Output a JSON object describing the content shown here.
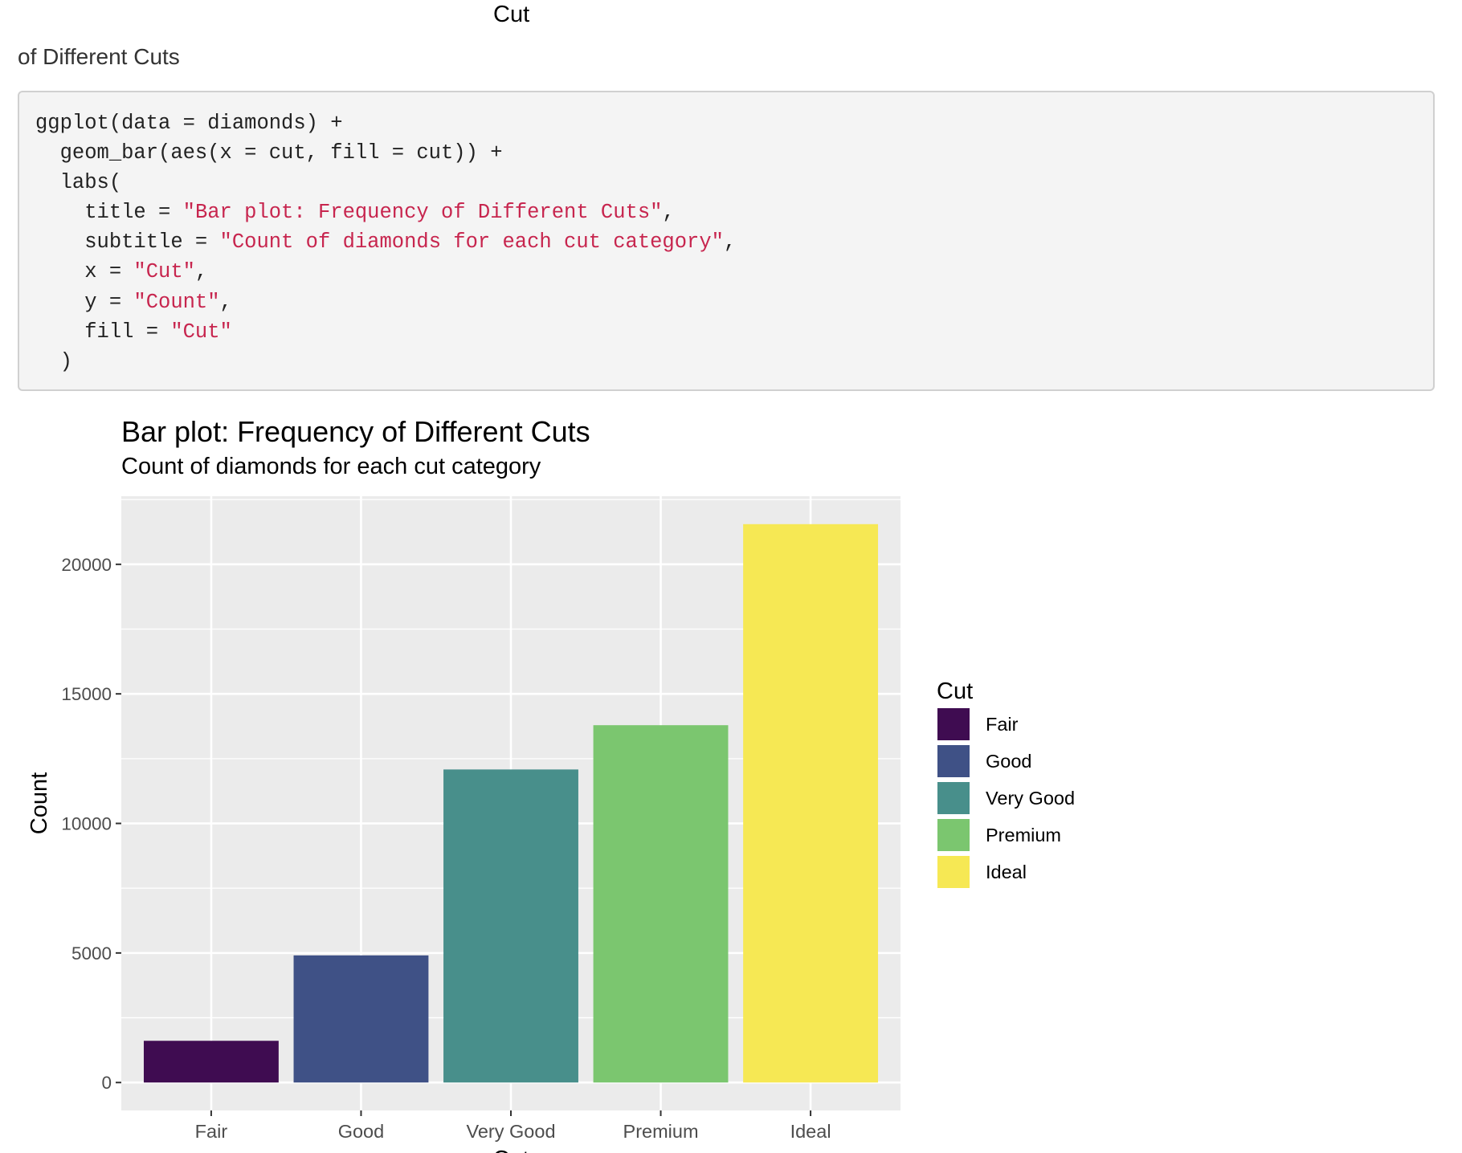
{
  "previous_output": {
    "axis_label": "Cut",
    "caption": "of Different Cuts"
  },
  "code": {
    "lines": [
      [
        {
          "t": "ggplot(data = diamonds) +",
          "k": "plain"
        }
      ],
      [
        {
          "t": "  geom_bar(aes(x = cut, fill = cut)) +",
          "k": "plain"
        }
      ],
      [
        {
          "t": "  labs(",
          "k": "plain"
        }
      ],
      [
        {
          "t": "    title = ",
          "k": "plain"
        },
        {
          "t": "\"Bar plot: Frequency of Different Cuts\"",
          "k": "str"
        },
        {
          "t": ",",
          "k": "plain"
        }
      ],
      [
        {
          "t": "    subtitle = ",
          "k": "plain"
        },
        {
          "t": "\"Count of diamonds for each cut category\"",
          "k": "str"
        },
        {
          "t": ",",
          "k": "plain"
        }
      ],
      [
        {
          "t": "    x = ",
          "k": "plain"
        },
        {
          "t": "\"Cut\"",
          "k": "str"
        },
        {
          "t": ",",
          "k": "plain"
        }
      ],
      [
        {
          "t": "    y = ",
          "k": "plain"
        },
        {
          "t": "\"Count\"",
          "k": "str"
        },
        {
          "t": ",",
          "k": "plain"
        }
      ],
      [
        {
          "t": "    fill = ",
          "k": "plain"
        },
        {
          "t": "\"Cut\"",
          "k": "str"
        }
      ],
      [
        {
          "t": "  )",
          "k": "plain"
        }
      ]
    ],
    "string_color": "#c7254e"
  },
  "chart_data": {
    "type": "bar",
    "title": "Bar plot: Frequency of Different Cuts",
    "subtitle": "Count of diamonds for each cut category",
    "xlabel": "Cut",
    "ylabel": "Count",
    "categories": [
      "Fair",
      "Good",
      "Very Good",
      "Premium",
      "Ideal"
    ],
    "values": [
      1610,
      4906,
      12082,
      13791,
      21551
    ],
    "colors": [
      "#440154",
      "#3B528B",
      "#21908C",
      "#5DC863",
      "#FDE725"
    ],
    "bar_colors_rendered": [
      "#3f0c51",
      "#3f5186",
      "#488f8b",
      "#7bc66f",
      "#f6e854"
    ],
    "yticks": [
      0,
      5000,
      10000,
      15000,
      20000
    ],
    "ylim": [
      -1078,
      22629
    ],
    "grid": true,
    "panel_background": "#ebebeb",
    "legend": {
      "title": "Cut",
      "position": "right",
      "entries": [
        "Fair",
        "Good",
        "Very Good",
        "Premium",
        "Ideal"
      ]
    }
  }
}
